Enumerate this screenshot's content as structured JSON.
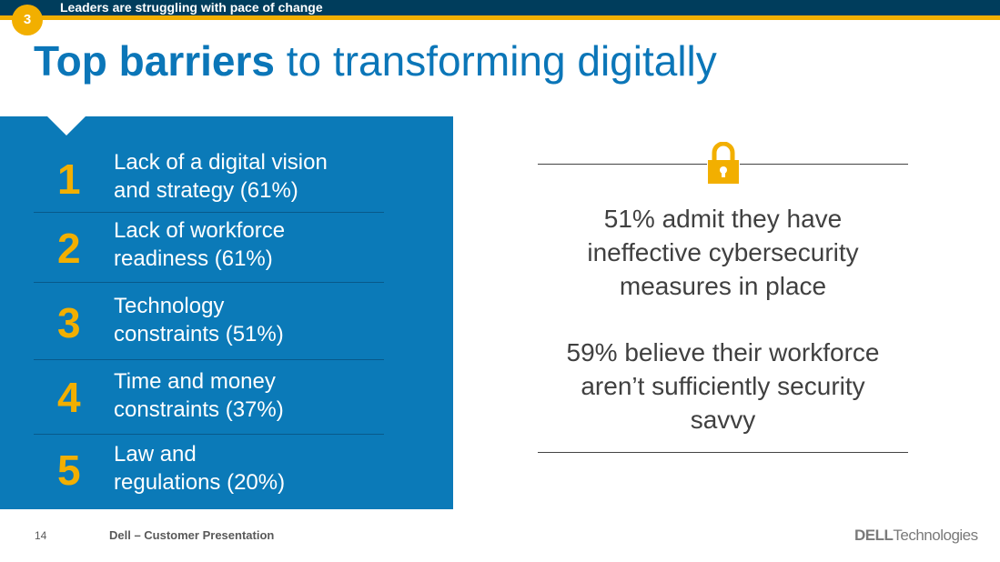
{
  "header": {
    "section_number": "3",
    "section_title": "Leaders are struggling with pace of change"
  },
  "title": {
    "bold": "Top barriers",
    "rest": " to transforming digitally"
  },
  "barriers": [
    {
      "num": "1",
      "line1": "Lack of a digital vision",
      "line2": "and strategy (61%)"
    },
    {
      "num": "2",
      "line1": "Lack of workforce",
      "line2": "readiness (61%)"
    },
    {
      "num": "3",
      "line1": "Technology",
      "line2": "constraints (51%)"
    },
    {
      "num": "4",
      "line1": "Time and money",
      "line2": "constraints (37%)"
    },
    {
      "num": "5",
      "line1": "Law and",
      "line2": "regulations (20%)"
    }
  ],
  "stats": [
    {
      "l1": "51% admit they have",
      "l2": "ineffective cybersecurity",
      "l3": "measures in place"
    },
    {
      "l1": "59% believe their workforce",
      "l2": "aren’t sufficiently security",
      "l3": "savvy"
    }
  ],
  "footer": {
    "page": "14",
    "label": "Dell – Customer Presentation",
    "logo_bold": "DELL",
    "logo_rest": "Technologies"
  },
  "colors": {
    "navy": "#003d5c",
    "yellow": "#f2af00",
    "blue": "#0b7ab8"
  }
}
